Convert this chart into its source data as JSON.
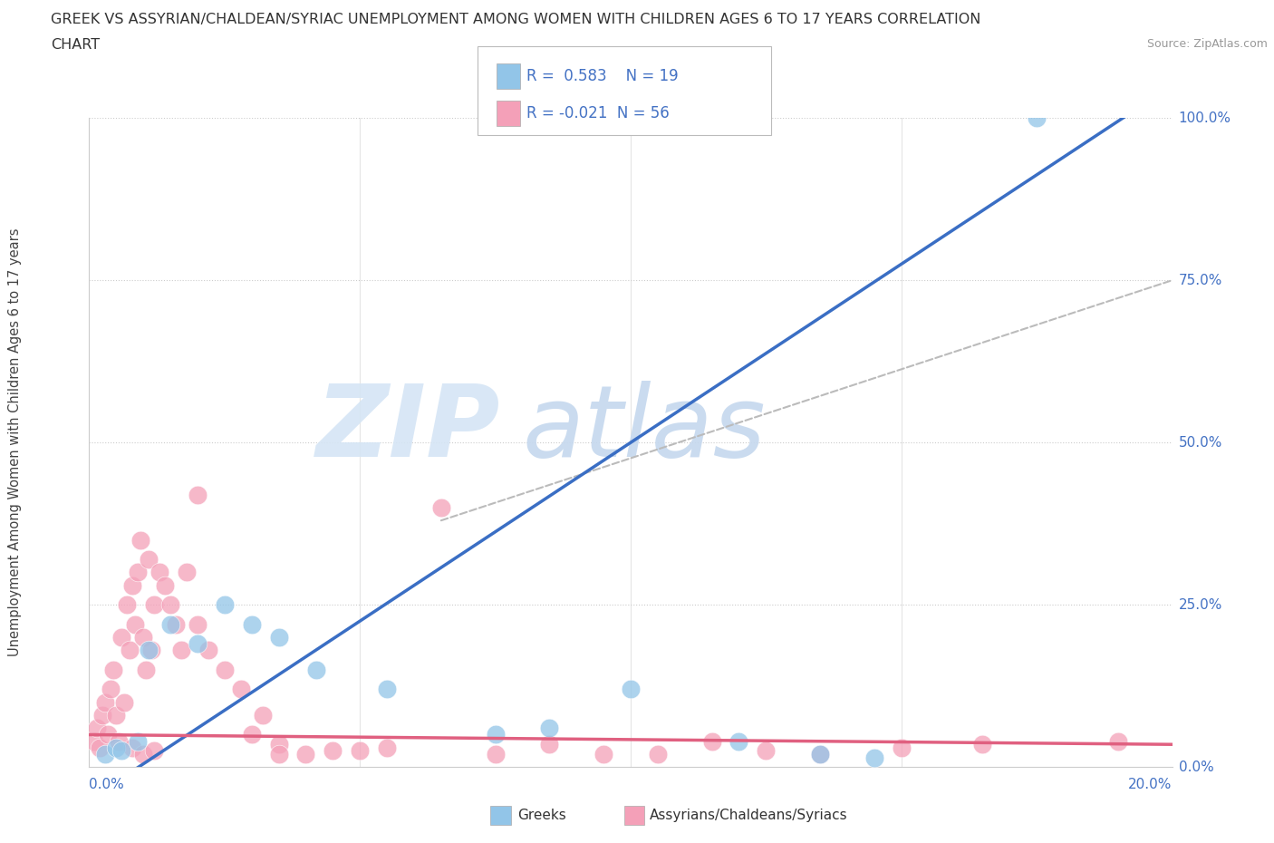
{
  "title_line1": "GREEK VS ASSYRIAN/CHALDEAN/SYRIAC UNEMPLOYMENT AMONG WOMEN WITH CHILDREN AGES 6 TO 17 YEARS CORRELATION",
  "title_line2": "CHART",
  "source": "Source: ZipAtlas.com",
  "ylabel": "Unemployment Among Women with Children Ages 6 to 17 years",
  "greek_R": 0.583,
  "greek_N": 19,
  "assyrian_R": -0.021,
  "assyrian_N": 56,
  "greek_color": "#92C5E8",
  "assyrian_color": "#F4A0B8",
  "greek_line_color": "#3A6EC4",
  "assyrian_line_color": "#E06080",
  "dash_line_color": "#BBBBBB",
  "background_color": "#FFFFFF",
  "greek_x": [
    0.3,
    0.5,
    0.6,
    0.9,
    1.1,
    1.5,
    2.0,
    2.5,
    3.0,
    3.5,
    4.2,
    5.5,
    7.5,
    8.5,
    10.0,
    12.0,
    13.5,
    14.5,
    17.5
  ],
  "greek_y": [
    2.0,
    3.0,
    2.5,
    4.0,
    18.0,
    22.0,
    19.0,
    25.0,
    22.0,
    20.0,
    15.0,
    12.0,
    5.0,
    6.0,
    12.0,
    4.0,
    2.0,
    1.5,
    100.0
  ],
  "assyrian_x": [
    0.1,
    0.15,
    0.2,
    0.25,
    0.3,
    0.35,
    0.4,
    0.45,
    0.5,
    0.55,
    0.6,
    0.65,
    0.7,
    0.75,
    0.8,
    0.85,
    0.9,
    0.95,
    1.0,
    1.05,
    1.1,
    1.15,
    1.2,
    1.3,
    1.4,
    1.5,
    1.6,
    1.7,
    1.8,
    2.0,
    2.2,
    2.5,
    2.8,
    3.0,
    3.2,
    3.5,
    4.0,
    4.5,
    5.5,
    6.5,
    7.5,
    8.5,
    9.5,
    10.5,
    11.5,
    12.5,
    13.5,
    15.0,
    16.5,
    2.0,
    0.8,
    1.0,
    1.2,
    3.5,
    5.0,
    19.0
  ],
  "assyrian_y": [
    4.0,
    6.0,
    3.0,
    8.0,
    10.0,
    5.0,
    12.0,
    15.0,
    8.0,
    4.0,
    20.0,
    10.0,
    25.0,
    18.0,
    28.0,
    22.0,
    30.0,
    35.0,
    20.0,
    15.0,
    32.0,
    18.0,
    25.0,
    30.0,
    28.0,
    25.0,
    22.0,
    18.0,
    30.0,
    22.0,
    18.0,
    15.0,
    12.0,
    5.0,
    8.0,
    3.5,
    2.0,
    2.5,
    3.0,
    40.0,
    2.0,
    3.5,
    2.0,
    2.0,
    4.0,
    2.5,
    2.0,
    3.0,
    3.5,
    42.0,
    3.0,
    2.0,
    2.5,
    2.0,
    2.5,
    4.0
  ],
  "yticks": [
    0,
    25,
    50,
    75,
    100
  ],
  "xticks": [
    0,
    5,
    10,
    15,
    20
  ]
}
